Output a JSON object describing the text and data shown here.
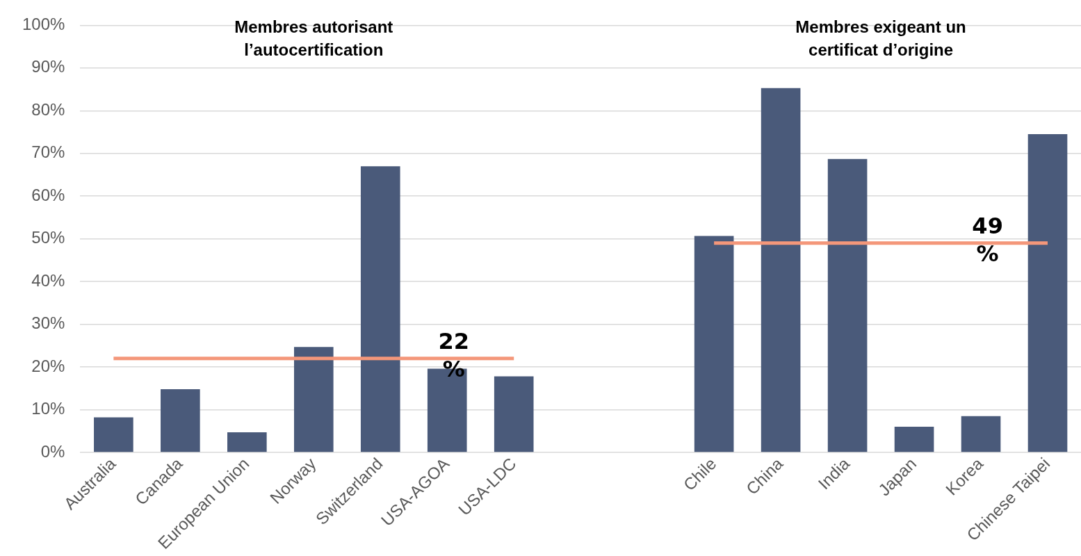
{
  "chart_data": {
    "type": "bar",
    "categories": [
      "Australia",
      "Canada",
      "European Union",
      "Norway",
      "Switzerland",
      "USA-AGOA",
      "USA-LDC",
      null,
      null,
      "Chile",
      "China",
      "India",
      "Japan",
      "Korea",
      "Chinese Taipei"
    ],
    "series": [
      {
        "color": "#4a5a7a",
        "values": [
          8.2,
          14.8,
          4.7,
          24.7,
          67,
          19.6,
          17.8,
          null,
          null,
          50.7,
          85.3,
          68.7,
          6,
          8.5,
          74.5
        ]
      },
      {
        "type": "line",
        "color": "#f4977a",
        "values": [
          22,
          22,
          22,
          22,
          22,
          22,
          22,
          null,
          null,
          null,
          null,
          null,
          null,
          null,
          null
        ]
      },
      {
        "type": "line",
        "color": "#f4977a",
        "values": [
          null,
          null,
          null,
          null,
          null,
          null,
          null,
          null,
          null,
          49,
          49,
          49,
          49,
          49,
          49
        ]
      }
    ],
    "ylim": [
      0,
      100
    ],
    "yticks": [
      {
        "value": 0,
        "label": "0%"
      },
      {
        "value": 10,
        "label": "10%"
      },
      {
        "value": 20,
        "label": "20%"
      },
      {
        "value": 30,
        "label": "30%"
      },
      {
        "value": 40,
        "label": "40%"
      },
      {
        "value": 50,
        "label": "50%"
      },
      {
        "value": 60,
        "label": "60%"
      },
      {
        "value": 70,
        "label": "70%"
      },
      {
        "value": 80,
        "label": "80%"
      },
      {
        "value": 90,
        "label": "90%"
      },
      {
        "value": 100,
        "label": "100%"
      }
    ],
    "grid": "y",
    "legend": false,
    "marker": "none",
    "annotations": [
      "Membres autorisant l’autocertification",
      "Membres exigeant un certificat d’origine",
      {
        "text": "22 %",
        "x": "USA-AGOA",
        "y": 22
      },
      {
        "text": "49 %",
        "x": "Korea",
        "y": 49
      }
    ]
  }
}
